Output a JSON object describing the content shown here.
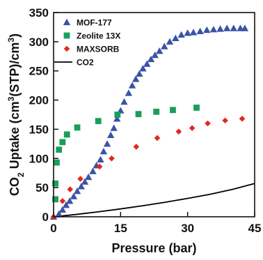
{
  "chart_data": {
    "type": "scatter",
    "title": "",
    "xlabel": "Pressure (bar)",
    "ylabel_parts": [
      "CO",
      "2",
      " Uptake (cm",
      "3",
      "(STP)/cm",
      "3",
      ")"
    ],
    "xlim": [
      0,
      45
    ],
    "ylim": [
      0,
      350
    ],
    "xticks": [
      0,
      15,
      30,
      45
    ],
    "yticks": [
      0,
      50,
      100,
      150,
      200,
      250,
      300,
      350
    ],
    "legend_position": "top-left",
    "grid": false,
    "series": [
      {
        "name": "MOF-177",
        "marker": "triangle",
        "color": "#3a53a4",
        "points": [
          [
            0,
            0
          ],
          [
            1.2,
            5
          ],
          [
            2,
            12
          ],
          [
            2.8,
            20
          ],
          [
            3.6,
            27
          ],
          [
            4.5,
            35
          ],
          [
            5.3,
            44
          ],
          [
            6.2,
            52
          ],
          [
            7,
            60
          ],
          [
            7.8,
            68
          ],
          [
            8.8,
            78
          ],
          [
            9.6,
            88
          ],
          [
            10.5,
            98
          ],
          [
            11.2,
            112
          ],
          [
            12,
            125
          ],
          [
            12.8,
            140
          ],
          [
            13.5,
            152
          ],
          [
            14.2,
            168
          ],
          [
            15,
            182
          ],
          [
            15.8,
            197
          ],
          [
            16.8,
            212
          ],
          [
            17.6,
            225
          ],
          [
            18.4,
            236
          ],
          [
            19.2,
            245
          ],
          [
            20,
            254
          ],
          [
            20.9,
            262
          ],
          [
            21.8,
            270
          ],
          [
            22.7,
            277
          ],
          [
            23.7,
            284
          ],
          [
            24.8,
            292
          ],
          [
            26,
            300
          ],
          [
            27.3,
            306
          ],
          [
            28.6,
            312
          ],
          [
            30,
            315
          ],
          [
            31.3,
            316
          ],
          [
            32.8,
            318
          ],
          [
            34.3,
            320
          ],
          [
            35.8,
            321
          ],
          [
            37.3,
            322
          ],
          [
            38.8,
            323
          ],
          [
            40.3,
            323
          ],
          [
            41.8,
            323
          ],
          [
            42.8,
            323
          ]
        ]
      },
      {
        "name": "Zeolite 13X",
        "marker": "square",
        "color": "#1a9e5c",
        "points": [
          [
            0.4,
            30
          ],
          [
            0.4,
            57
          ],
          [
            0.7,
            93
          ],
          [
            1.2,
            115
          ],
          [
            2,
            128
          ],
          [
            3,
            141
          ],
          [
            5.3,
            153
          ],
          [
            10,
            164
          ],
          [
            14.3,
            175
          ],
          [
            19,
            176
          ],
          [
            23,
            180
          ],
          [
            26.7,
            183
          ],
          [
            32,
            187
          ]
        ]
      },
      {
        "name": "MAXSORB",
        "marker": "diamond",
        "color": "#e1281f",
        "points": [
          [
            0,
            0
          ],
          [
            2,
            27
          ],
          [
            3.7,
            47
          ],
          [
            6,
            65
          ],
          [
            10.3,
            86
          ],
          [
            13,
            100
          ],
          [
            18.5,
            120
          ],
          [
            23.2,
            135
          ],
          [
            28,
            146
          ],
          [
            31,
            152
          ],
          [
            34.5,
            160
          ],
          [
            38.4,
            165
          ],
          [
            42.2,
            168
          ]
        ]
      },
      {
        "name": "CO2",
        "marker": "line",
        "color": "#000000",
        "curve": [
          [
            0,
            0
          ],
          [
            5,
            4
          ],
          [
            10,
            8.5
          ],
          [
            15,
            13.5
          ],
          [
            20,
            19
          ],
          [
            25,
            25
          ],
          [
            30,
            31.5
          ],
          [
            35,
            38.5
          ],
          [
            40,
            47
          ],
          [
            45,
            57
          ]
        ]
      }
    ]
  }
}
